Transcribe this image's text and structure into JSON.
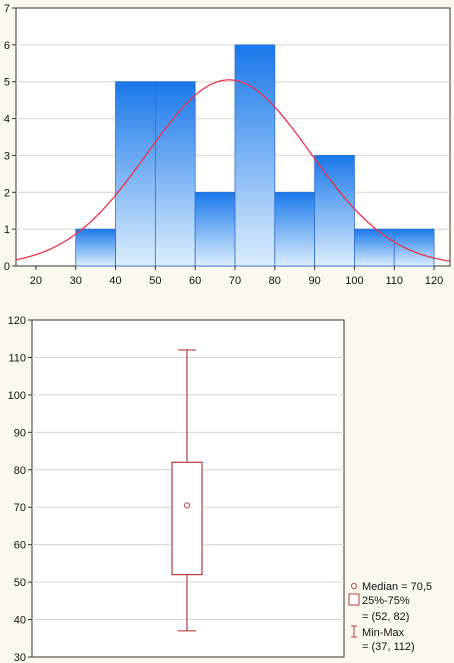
{
  "chart_data": [
    {
      "type": "bar",
      "subtype": "histogram-with-normal-curve",
      "title": "",
      "xlabel": "",
      "ylabel": "",
      "bins": [
        {
          "from": 30,
          "to": 40,
          "count": 1
        },
        {
          "from": 40,
          "to": 50,
          "count": 5
        },
        {
          "from": 50,
          "to": 60,
          "count": 5
        },
        {
          "from": 60,
          "to": 70,
          "count": 2
        },
        {
          "from": 70,
          "to": 80,
          "count": 6
        },
        {
          "from": 80,
          "to": 90,
          "count": 2
        },
        {
          "from": 90,
          "to": 100,
          "count": 3
        },
        {
          "from": 100,
          "to": 110,
          "count": 1
        },
        {
          "from": 110,
          "to": 120,
          "count": 1
        }
      ],
      "normal_curve": {
        "mean": 68.5,
        "sd": 20.5,
        "peak": 5.05
      },
      "xlim": [
        15,
        124
      ],
      "ylim": [
        0,
        7
      ],
      "xticks": [
        "20",
        "30",
        "40",
        "50",
        "60",
        "70",
        "80",
        "90",
        "100",
        "110",
        "120"
      ],
      "yticks": [
        "0",
        "1",
        "2",
        "3",
        "4",
        "5",
        "6",
        "7"
      ],
      "grid": true,
      "colors": {
        "bar_light": "#dceefd",
        "bar_dark": "#1a78ea",
        "bar_stroke": "#2f6fd0",
        "curve": "#e8324a"
      }
    },
    {
      "type": "boxplot",
      "title": "",
      "median": 70.5,
      "q1": 52,
      "q3": 82,
      "min": 37,
      "max": 112,
      "ylim": [
        30,
        120
      ],
      "yticks": [
        "30",
        "40",
        "50",
        "60",
        "70",
        "80",
        "90",
        "100",
        "110",
        "120"
      ],
      "grid": true,
      "legend_position": "bottom-right",
      "legend": [
        {
          "symbol": "circle",
          "lines": [
            "Median = 70,5"
          ]
        },
        {
          "symbol": "box",
          "lines": [
            "25%-75%",
            "= (52, 82)"
          ]
        },
        {
          "symbol": "whisker",
          "lines": [
            "Min-Max",
            "= (37, 112)"
          ]
        }
      ],
      "colors": {
        "box": "#b83a3a"
      }
    }
  ]
}
